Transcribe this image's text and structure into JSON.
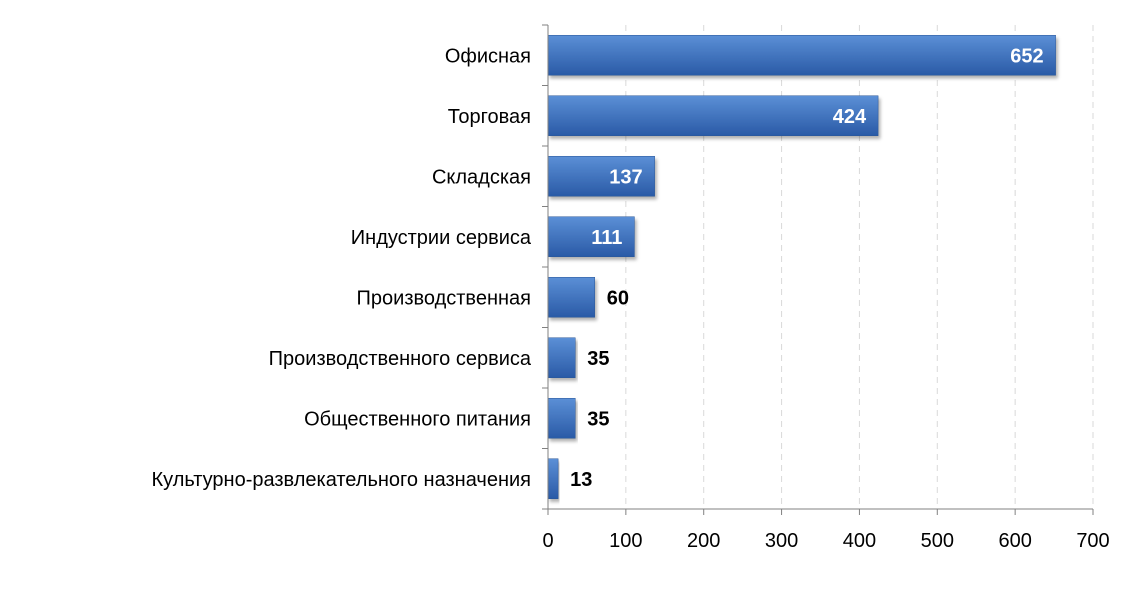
{
  "chart_data": {
    "type": "bar",
    "orientation": "horizontal",
    "title": "",
    "xlabel": "",
    "ylabel": "",
    "categories": [
      "Офисная",
      "Торговая",
      "Складская",
      "Индустрии сервиса",
      "Производственная",
      "Производственного сервиса",
      "Общественного питания",
      "Культурно-развлекательного назначения"
    ],
    "values": [
      652,
      424,
      137,
      111,
      60,
      35,
      35,
      13
    ],
    "data_labels": [
      "652",
      "424",
      "137",
      "111",
      "60",
      "35",
      "35",
      "13"
    ],
    "xlim": [
      0,
      700
    ],
    "xticks": [
      0,
      100,
      200,
      300,
      400,
      500,
      600,
      700
    ],
    "xtick_labels": [
      "0",
      "100",
      "200",
      "300",
      "400",
      "500",
      "600",
      "700"
    ],
    "grid": "vertical dashed",
    "legend": "none",
    "colors": {
      "bar_top": "#5b8fd6",
      "bar_bottom": "#2a5aa6",
      "bar_edge": "#2b5797",
      "label_inside": "#ffffff",
      "label_outside": "#000000",
      "grid": "#d9d9d9",
      "axis": "#808080"
    }
  }
}
